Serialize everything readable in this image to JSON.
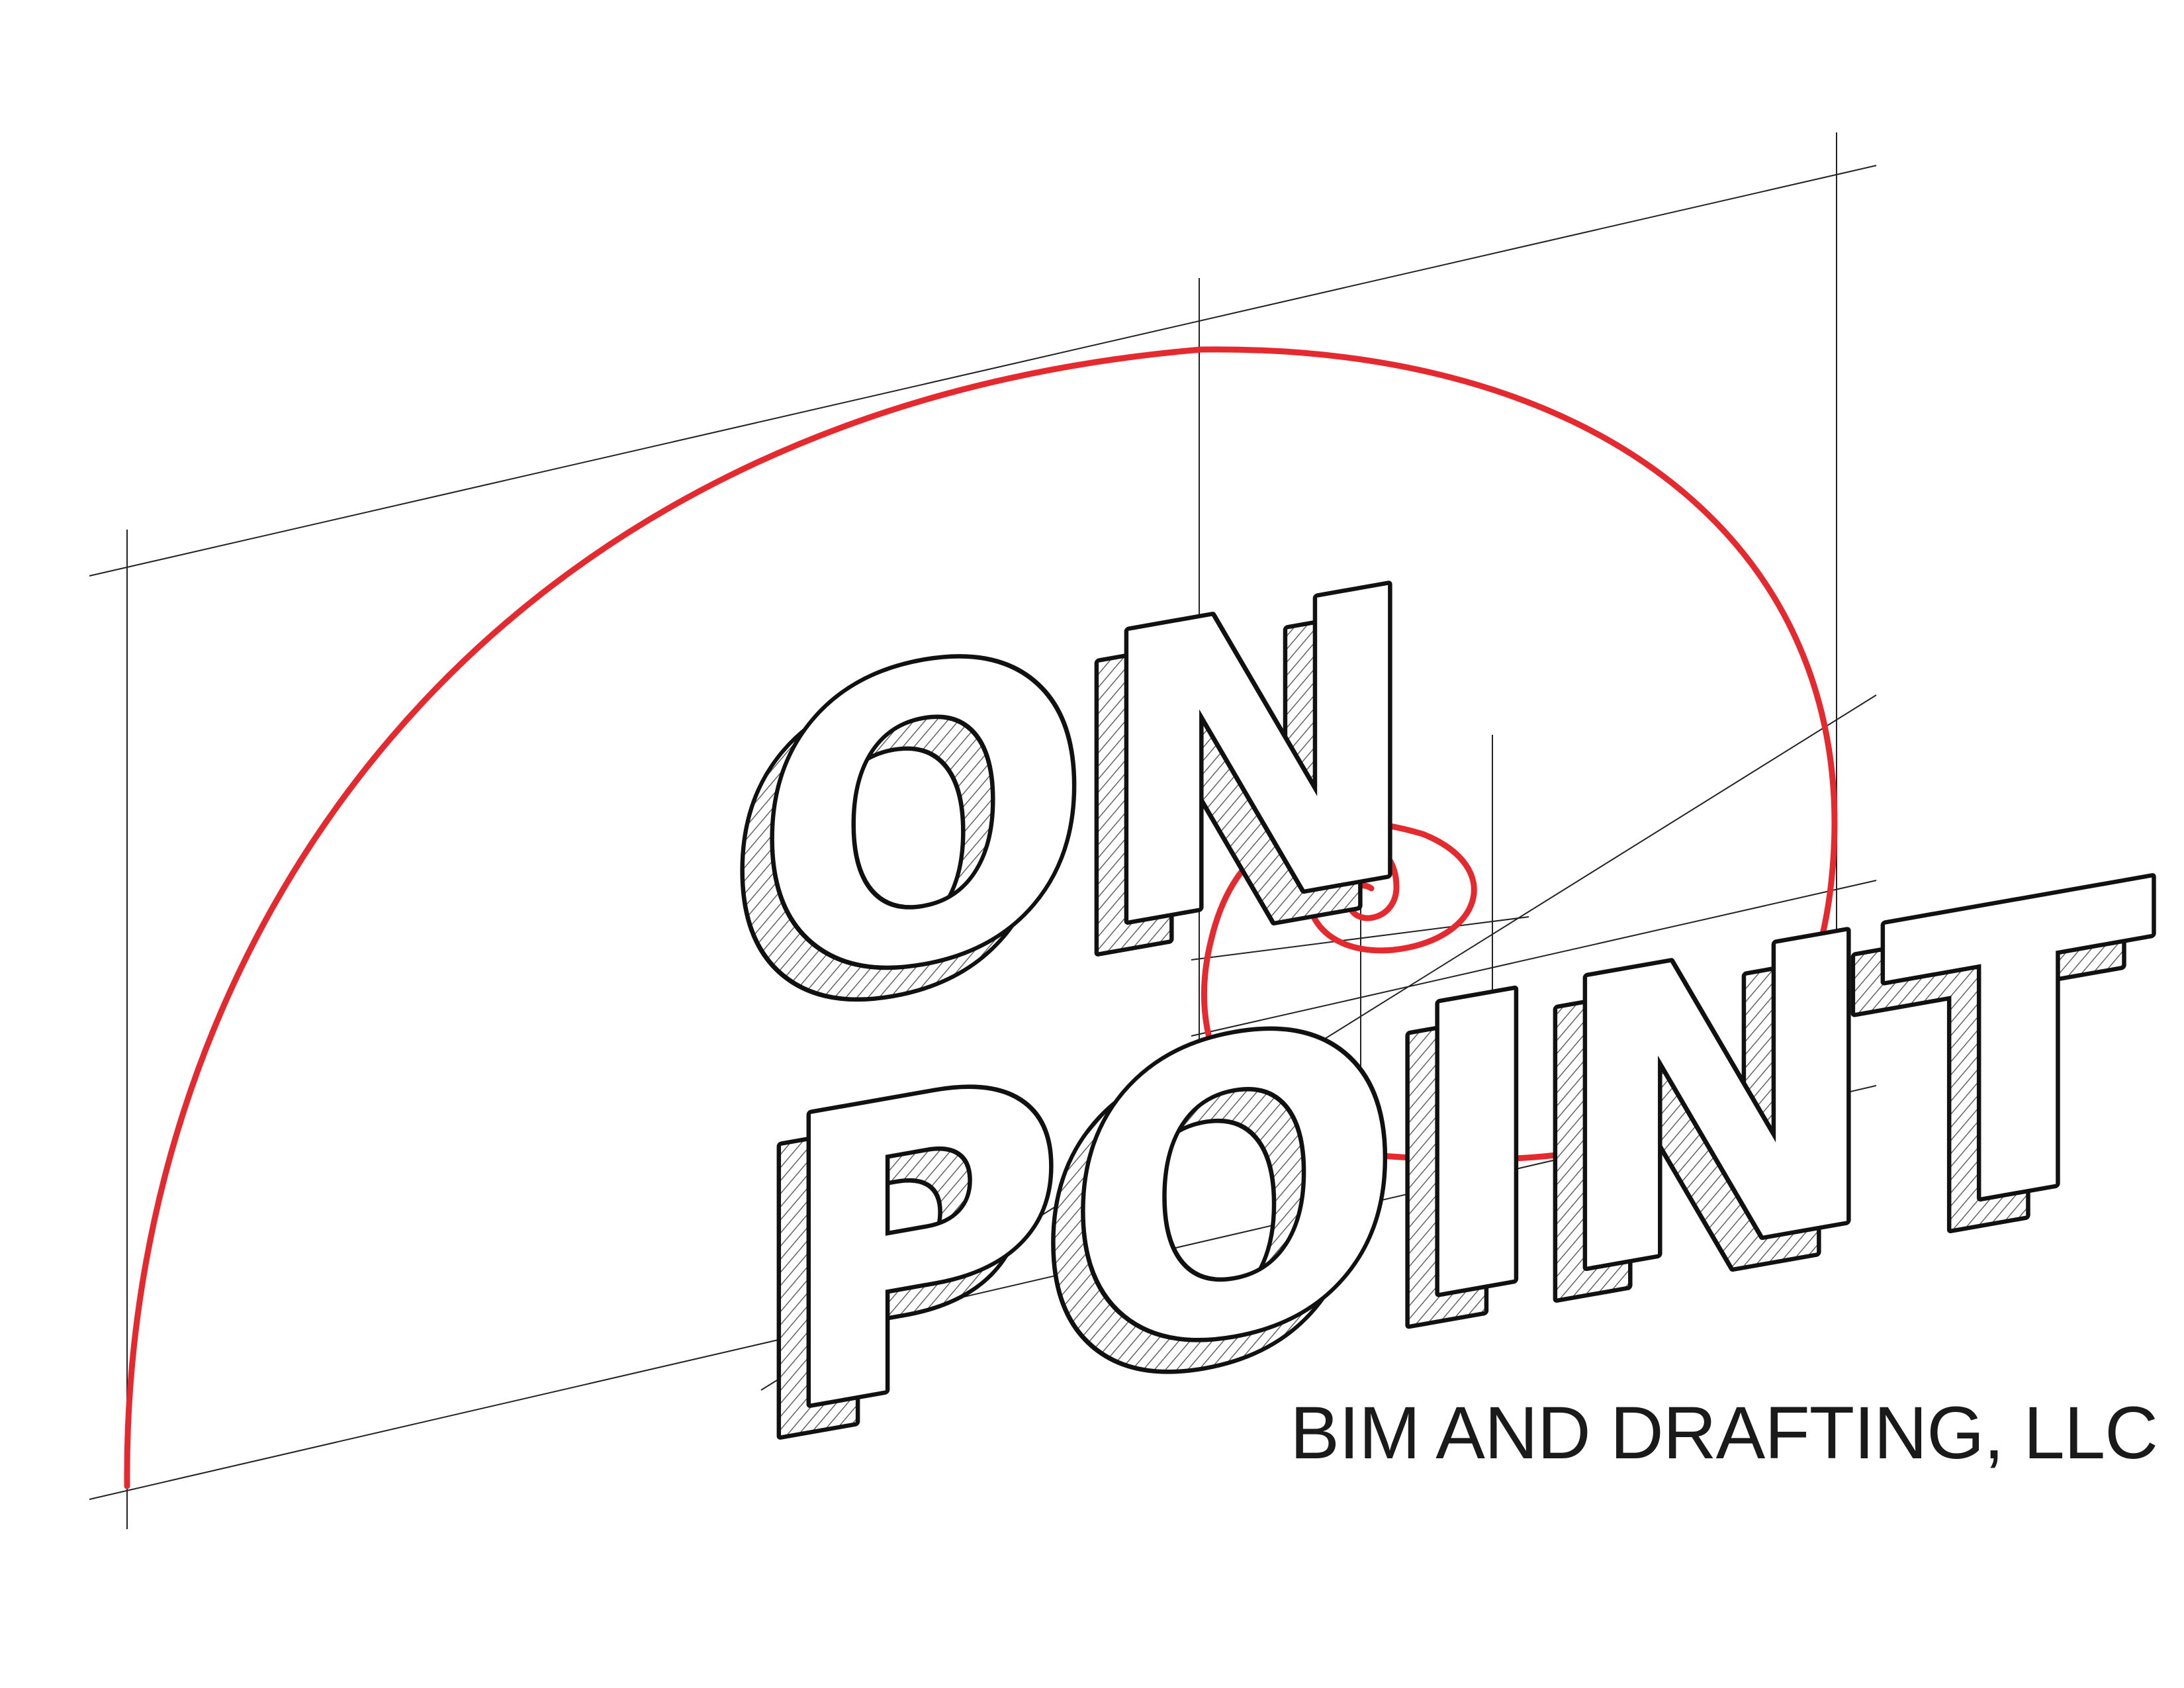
{
  "logo": {
    "word_top": "ON",
    "word_bottom": "POINT",
    "tagline": "BIM AND DRAFTING, LLC",
    "colors": {
      "spiral": "#e52a2f",
      "outline": "#111111",
      "background": "#ffffff"
    }
  }
}
